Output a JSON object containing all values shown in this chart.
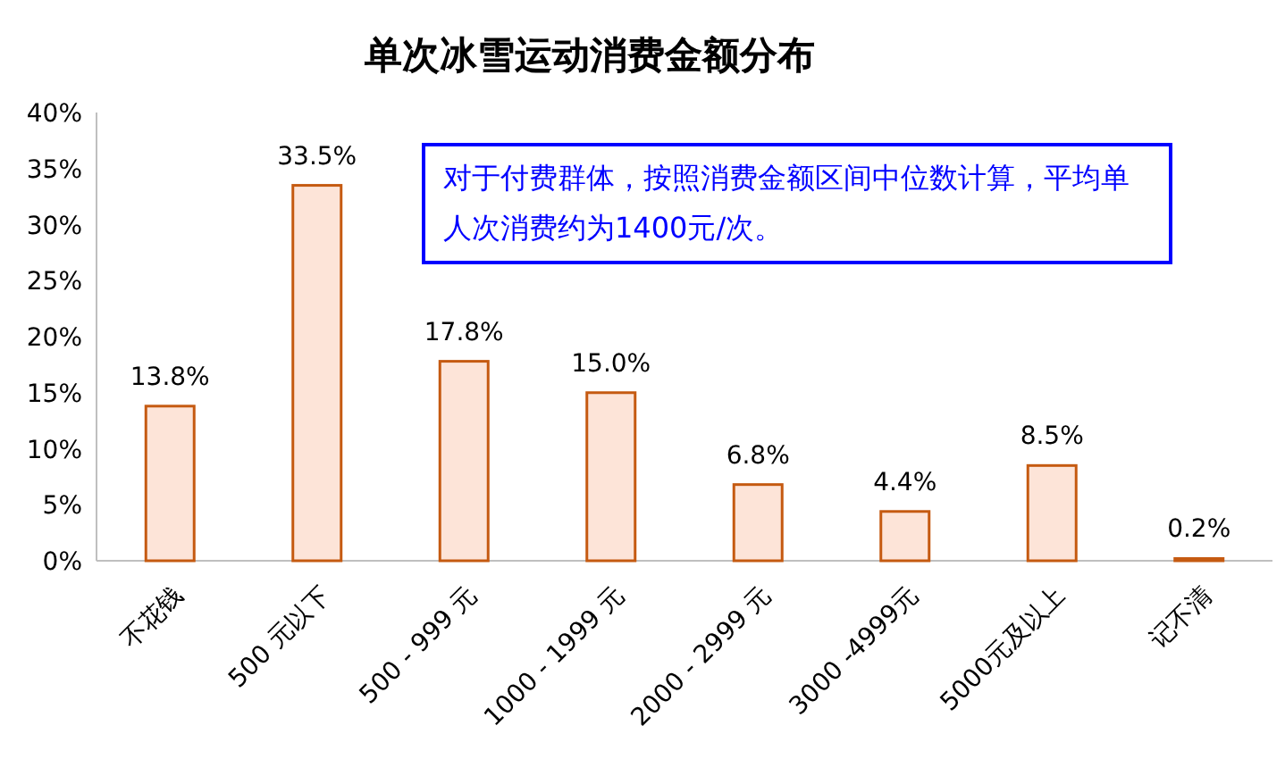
{
  "chart_data": {
    "type": "bar",
    "title": "单次冰雪运动消费金额分布",
    "categories": [
      "不花钱",
      "500 元以下",
      "500 - 999 元",
      "1000 - 1999 元",
      "2000 - 2999 元",
      "3000 -4999元",
      "5000元及以上",
      "记不清"
    ],
    "values": [
      13.8,
      33.5,
      17.8,
      15.0,
      6.8,
      4.4,
      8.5,
      0.2
    ],
    "value_labels": [
      "13.8%",
      "33.5%",
      "17.8%",
      "15.0%",
      "6.8%",
      "4.4%",
      "8.5%",
      "0.2%"
    ],
    "color": "#fde4d8",
    "ylim": [
      0,
      40
    ],
    "yticks": [
      {
        "value": 0,
        "label": "0%"
      },
      {
        "value": 5,
        "label": "5%"
      },
      {
        "value": 10,
        "label": "10%"
      },
      {
        "value": 15,
        "label": "15%"
      },
      {
        "value": 20,
        "label": "20%"
      },
      {
        "value": 25,
        "label": "25%"
      },
      {
        "value": 30,
        "label": "30%"
      },
      {
        "value": 35,
        "label": "35%"
      },
      {
        "value": 40,
        "label": "40%"
      }
    ],
    "annotations": [
      "对于付费群体，按照消费金额区间中位数计算，平均单人次消费约为1400元/次。"
    ],
    "grid": false
  }
}
